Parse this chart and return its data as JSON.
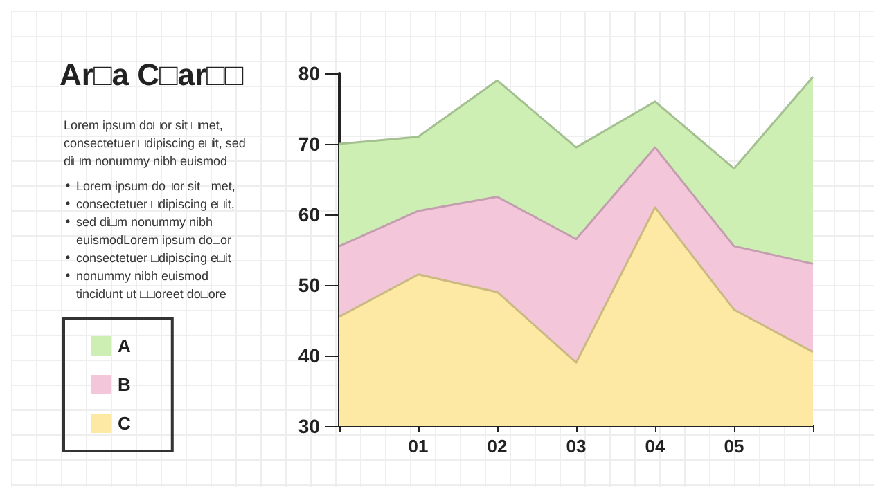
{
  "chart_data": {
    "type": "area",
    "title": "Ar□a C□ar□□",
    "annotations": [
      "Lorem ipsum do□or sit □met,\nconsectetuer □dipiscing e□it, sed\ndi□m nonummy nibh euismod",
      "Lorem ipsum do□or sit □met,",
      "consectetuer □dipiscing e□it,",
      "sed di□m nonummy nibh\neuismodLorem ipsum do□or",
      "consectetuer □dipiscing e□it",
      "nonummy nibh euismod\ntincidunt ut □□oreet do□ore"
    ],
    "categories": [
      null,
      "01",
      "02",
      "03",
      "04",
      "05",
      null
    ],
    "series": [
      {
        "name": "A",
        "color": "#cdefb4",
        "values": [
          70,
          71,
          79,
          69.5,
          76,
          66.5,
          79.5
        ]
      },
      {
        "name": "B",
        "color": "#f4c6da",
        "values": [
          55.5,
          60.5,
          62.5,
          56.5,
          69.5,
          55.5,
          53
        ]
      },
      {
        "name": "C",
        "color": "#fde9a3",
        "values": [
          45.5,
          51.5,
          49,
          39,
          61,
          46.5,
          40.5
        ]
      }
    ],
    "ylim": [
      30,
      80
    ],
    "yticks": [
      30,
      40,
      50,
      60,
      70,
      80
    ],
    "grid": false,
    "legend": "left"
  }
}
